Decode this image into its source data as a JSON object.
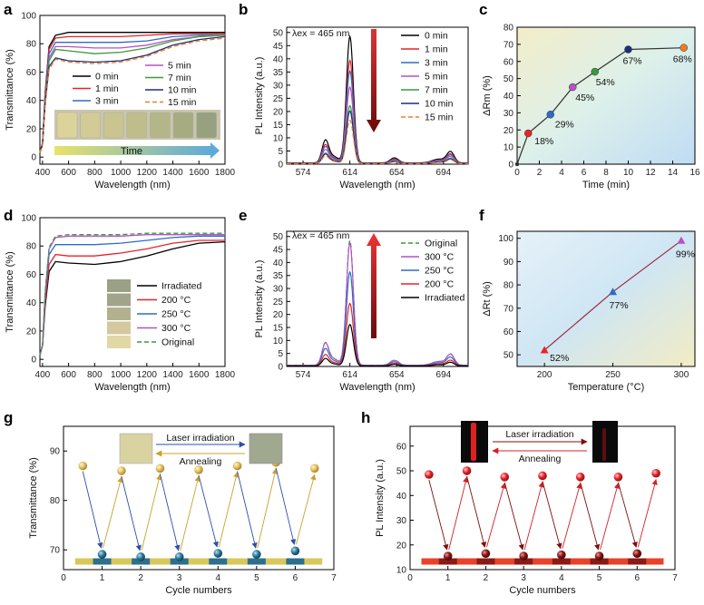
{
  "chart_data": [
    {
      "panel": "a",
      "type": "line",
      "xlabel": "Wavelength (nm)",
      "ylabel": "Transmittance (%)",
      "xlim": [
        380,
        1800
      ],
      "ylim": [
        -5,
        100
      ],
      "xticks": [
        "400",
        "600",
        "800",
        "1000",
        "1200",
        "1400",
        "1600",
        "1800"
      ],
      "yticks": [
        "0",
        "20",
        "40",
        "60",
        "80",
        "100"
      ],
      "inset_label": "Time",
      "series": [
        {
          "name": "0 min",
          "color": "#000000",
          "dash": "",
          "points": [
            [
              380,
              3
            ],
            [
              400,
              10
            ],
            [
              420,
              45
            ],
            [
              450,
              78
            ],
            [
              500,
              86
            ],
            [
              600,
              88
            ],
            [
              800,
              88
            ],
            [
              1000,
              88
            ],
            [
              1200,
              88
            ],
            [
              1400,
              88
            ],
            [
              1600,
              88
            ],
            [
              1800,
              88
            ]
          ]
        },
        {
          "name": "1 min",
          "color": "#e8232a",
          "dash": "",
          "points": [
            [
              380,
              3
            ],
            [
              400,
              10
            ],
            [
              420,
              44
            ],
            [
              450,
              76
            ],
            [
              500,
              84
            ],
            [
              600,
              85
            ],
            [
              800,
              85
            ],
            [
              1000,
              85
            ],
            [
              1200,
              86
            ],
            [
              1400,
              87
            ],
            [
              1600,
              87
            ],
            [
              1800,
              87
            ]
          ]
        },
        {
          "name": "3 min",
          "color": "#2e6bc6",
          "dash": "",
          "points": [
            [
              380,
              3
            ],
            [
              400,
              10
            ],
            [
              420,
              42
            ],
            [
              450,
              73
            ],
            [
              500,
              81
            ],
            [
              600,
              81
            ],
            [
              800,
              81
            ],
            [
              1000,
              81
            ],
            [
              1200,
              82
            ],
            [
              1400,
              85
            ],
            [
              1600,
              86
            ],
            [
              1800,
              86
            ]
          ]
        },
        {
          "name": "5 min",
          "color": "#b552c4",
          "dash": "",
          "points": [
            [
              380,
              3
            ],
            [
              400,
              9
            ],
            [
              420,
              40
            ],
            [
              450,
              70
            ],
            [
              500,
              78
            ],
            [
              600,
              78
            ],
            [
              800,
              77
            ],
            [
              1000,
              77
            ],
            [
              1200,
              79
            ],
            [
              1400,
              83
            ],
            [
              1600,
              85
            ],
            [
              1800,
              86
            ]
          ]
        },
        {
          "name": "7 min",
          "color": "#3a9a3e",
          "dash": "",
          "points": [
            [
              380,
              3
            ],
            [
              400,
              9
            ],
            [
              420,
              39
            ],
            [
              450,
              68
            ],
            [
              500,
              76
            ],
            [
              600,
              75
            ],
            [
              800,
              73
            ],
            [
              1000,
              74
            ],
            [
              1200,
              77
            ],
            [
              1400,
              82
            ],
            [
              1600,
              85
            ],
            [
              1800,
              86
            ]
          ]
        },
        {
          "name": "10 min",
          "color": "#1c2f7a",
          "dash": "",
          "points": [
            [
              380,
              3
            ],
            [
              400,
              9
            ],
            [
              420,
              37
            ],
            [
              450,
              64
            ],
            [
              500,
              70
            ],
            [
              600,
              68
            ],
            [
              800,
              67
            ],
            [
              1000,
              68
            ],
            [
              1200,
              72
            ],
            [
              1400,
              79
            ],
            [
              1600,
              83
            ],
            [
              1800,
              85
            ]
          ]
        },
        {
          "name": "15 min",
          "color": "#f07c22",
          "dash": "5,3",
          "points": [
            [
              380,
              3
            ],
            [
              400,
              9
            ],
            [
              420,
              36
            ],
            [
              450,
              62
            ],
            [
              500,
              69
            ],
            [
              600,
              67
            ],
            [
              800,
              66
            ],
            [
              1000,
              67
            ],
            [
              1200,
              71
            ],
            [
              1400,
              78
            ],
            [
              1600,
              82
            ],
            [
              1800,
              84
            ]
          ]
        }
      ]
    },
    {
      "panel": "b",
      "type": "line",
      "xlabel": "Wavelength (nm)",
      "ylabel": "PL Intensity (a.u.)",
      "xlim": [
        560,
        715
      ],
      "ylim": [
        0,
        52
      ],
      "xticks": [
        "574",
        "614",
        "654",
        "694"
      ],
      "yticks": [
        "0",
        "5",
        "10",
        "15",
        "20",
        "25",
        "30",
        "35",
        "40",
        "45",
        "50"
      ],
      "annotation": "λex = 465 nm",
      "peak_factors": [
        48,
        39,
        35,
        29,
        22,
        20,
        16.5
      ],
      "series": [
        {
          "name": "0 min",
          "color": "#000000",
          "dash": ""
        },
        {
          "name": "1 min",
          "color": "#e8232a",
          "dash": ""
        },
        {
          "name": "3 min",
          "color": "#2e6bc6",
          "dash": ""
        },
        {
          "name": "5 min",
          "color": "#b552c4",
          "dash": ""
        },
        {
          "name": "7 min",
          "color": "#3a9a3e",
          "dash": ""
        },
        {
          "name": "10 min",
          "color": "#1c2f7a",
          "dash": ""
        },
        {
          "name": "15 min",
          "color": "#f07c22",
          "dash": "5,3"
        }
      ]
    },
    {
      "panel": "c",
      "type": "scatter",
      "xlabel": "Time (min)",
      "ylabel": "ΔRm (%)",
      "xlim": [
        0,
        16
      ],
      "ylim": [
        0,
        80
      ],
      "xticks": [
        "0",
        "2",
        "4",
        "6",
        "8",
        "10",
        "12",
        "14",
        "16"
      ],
      "yticks": [
        "0",
        "10",
        "20",
        "30",
        "40",
        "50",
        "60",
        "70",
        "80"
      ],
      "points": [
        {
          "x": 0,
          "y": 0,
          "label": "",
          "color": "#333333"
        },
        {
          "x": 1,
          "y": 18,
          "label": "18%",
          "color": "#e8232a"
        },
        {
          "x": 3,
          "y": 29,
          "label": "29%",
          "color": "#2e6bc6"
        },
        {
          "x": 5,
          "y": 45,
          "label": "45%",
          "color": "#b552c4"
        },
        {
          "x": 7,
          "y": 54,
          "label": "54%",
          "color": "#3a9a3e"
        },
        {
          "x": 10,
          "y": 67,
          "label": "67%",
          "color": "#1c2f7a"
        },
        {
          "x": 15,
          "y": 68,
          "label": "68%",
          "color": "#f07c22"
        }
      ]
    },
    {
      "panel": "d",
      "type": "line",
      "xlabel": "Wavelength (nm)",
      "ylabel": "Transmittance (%)",
      "xlim": [
        380,
        1800
      ],
      "ylim": [
        -5,
        100
      ],
      "xticks": [
        "400",
        "600",
        "800",
        "1000",
        "1200",
        "1400",
        "1600",
        "1800"
      ],
      "yticks": [
        "0",
        "20",
        "40",
        "60",
        "80",
        "100"
      ],
      "series": [
        {
          "name": "Irradiated",
          "color": "#000000",
          "dash": "",
          "points": [
            [
              380,
              3
            ],
            [
              400,
              10
            ],
            [
              420,
              37
            ],
            [
              450,
              62
            ],
            [
              500,
              69
            ],
            [
              600,
              68
            ],
            [
              800,
              67
            ],
            [
              1000,
              69
            ],
            [
              1200,
              73
            ],
            [
              1400,
              78
            ],
            [
              1600,
              82
            ],
            [
              1800,
              83
            ]
          ]
        },
        {
          "name": "200 °C",
          "color": "#e8232a",
          "dash": "",
          "points": [
            [
              380,
              3
            ],
            [
              400,
              10
            ],
            [
              420,
              40
            ],
            [
              450,
              67
            ],
            [
              500,
              74
            ],
            [
              600,
              73
            ],
            [
              800,
              73
            ],
            [
              1000,
              75
            ],
            [
              1200,
              78
            ],
            [
              1400,
              82
            ],
            [
              1600,
              84
            ],
            [
              1800,
              84
            ]
          ]
        },
        {
          "name": "250 °C",
          "color": "#2e6bc6",
          "dash": "",
          "points": [
            [
              380,
              3
            ],
            [
              400,
              10
            ],
            [
              420,
              44
            ],
            [
              450,
              74
            ],
            [
              500,
              81
            ],
            [
              600,
              81
            ],
            [
              800,
              81
            ],
            [
              1000,
              82
            ],
            [
              1200,
              84
            ],
            [
              1400,
              86
            ],
            [
              1600,
              87
            ],
            [
              1800,
              87
            ]
          ]
        },
        {
          "name": "300 °C",
          "color": "#b552c4",
          "dash": "",
          "points": [
            [
              380,
              3
            ],
            [
              400,
              10
            ],
            [
              420,
              46
            ],
            [
              450,
              78
            ],
            [
              500,
              86
            ],
            [
              600,
              87
            ],
            [
              800,
              87
            ],
            [
              1000,
              87
            ],
            [
              1200,
              88
            ],
            [
              1400,
              88
            ],
            [
              1600,
              88
            ],
            [
              1800,
              88
            ]
          ]
        },
        {
          "name": "Original",
          "color": "#3a9a3e",
          "dash": "5,3",
          "points": [
            [
              380,
              3
            ],
            [
              400,
              10
            ],
            [
              420,
              47
            ],
            [
              450,
              79
            ],
            [
              500,
              87
            ],
            [
              600,
              88
            ],
            [
              800,
              88
            ],
            [
              1000,
              88
            ],
            [
              1200,
              89
            ],
            [
              1400,
              89
            ],
            [
              1600,
              89
            ],
            [
              1800,
              89
            ]
          ]
        }
      ]
    },
    {
      "panel": "e",
      "type": "line",
      "xlabel": "Wavelength (nm)",
      "ylabel": "PL Intensity (a.u.)",
      "xlim": [
        560,
        715
      ],
      "ylim": [
        0,
        52
      ],
      "xticks": [
        "574",
        "614",
        "654",
        "694"
      ],
      "yticks": [
        "0",
        "5",
        "10",
        "15",
        "20",
        "25",
        "30",
        "35",
        "40",
        "45",
        "50"
      ],
      "annotation": "λex = 465 nm",
      "peak_factors": [
        48,
        47,
        36,
        24,
        16
      ],
      "series": [
        {
          "name": "Original",
          "color": "#3a9a3e",
          "dash": "5,3"
        },
        {
          "name": "300 °C",
          "color": "#b552c4",
          "dash": ""
        },
        {
          "name": "250 °C",
          "color": "#2e6bc6",
          "dash": ""
        },
        {
          "name": "200 °C",
          "color": "#e8232a",
          "dash": ""
        },
        {
          "name": "Irradiated",
          "color": "#000000",
          "dash": ""
        }
      ]
    },
    {
      "panel": "f",
      "type": "scatter",
      "xlabel": "Temperature (°C)",
      "ylabel": "ΔRt (%)",
      "xlim": [
        180,
        310
      ],
      "ylim": [
        45,
        103
      ],
      "xticks": [
        "200",
        "250",
        "300"
      ],
      "yticks": [
        "50",
        "60",
        "70",
        "80",
        "90",
        "100"
      ],
      "points": [
        {
          "x": 200,
          "y": 52,
          "label": "52%",
          "color": "#e8232a"
        },
        {
          "x": 250,
          "y": 77,
          "label": "77%",
          "color": "#2e6bc6"
        },
        {
          "x": 300,
          "y": 99,
          "label": "99%",
          "color": "#b552c4"
        }
      ]
    },
    {
      "panel": "g",
      "type": "scatter",
      "xlabel": "Cycle numbers",
      "ylabel": "Transmittance (%)",
      "xlim": [
        0,
        7
      ],
      "ylim": [
        66,
        95
      ],
      "xticks": [
        "0",
        "1",
        "2",
        "3",
        "4",
        "5",
        "6",
        "7"
      ],
      "yticks": [
        "70",
        "80",
        "90"
      ],
      "arrow_top": "Laser irradiation",
      "arrow_bottom": "Annealing",
      "high": [
        [
          0.5,
          87
        ],
        [
          1.5,
          86
        ],
        [
          2.5,
          86.5
        ],
        [
          3.5,
          86.2
        ],
        [
          4.5,
          87
        ],
        [
          5.5,
          87.7
        ],
        [
          6.5,
          86.5
        ]
      ],
      "low": [
        [
          1,
          69.1
        ],
        [
          2,
          68.6
        ],
        [
          3,
          68.6
        ],
        [
          4,
          69.3
        ],
        [
          5,
          69.1
        ],
        [
          6,
          69.8
        ]
      ],
      "high_color": "#d8b44a",
      "low_color": "#2d7a9a"
    },
    {
      "panel": "h",
      "type": "scatter",
      "xlabel": "Cycle numbers",
      "ylabel": "PL Intensity (a.u.)",
      "xlim": [
        0,
        7
      ],
      "ylim": [
        10,
        68
      ],
      "xticks": [
        "0",
        "1",
        "2",
        "3",
        "4",
        "5",
        "6",
        "7"
      ],
      "yticks": [
        "10",
        "20",
        "30",
        "40",
        "50",
        "60"
      ],
      "arrow_top": "Laser irradiation",
      "arrow_bottom": "Annealing",
      "high": [
        [
          0.5,
          48.5
        ],
        [
          1.5,
          50
        ],
        [
          2.5,
          47.5
        ],
        [
          3.5,
          48
        ],
        [
          4.5,
          47.5
        ],
        [
          5.5,
          47.5
        ],
        [
          6.5,
          49
        ]
      ],
      "low": [
        [
          1,
          15.5
        ],
        [
          2,
          16.5
        ],
        [
          3,
          15.5
        ],
        [
          4,
          16
        ],
        [
          5,
          15.5
        ],
        [
          6,
          16.5
        ]
      ],
      "high_color": "#e8232a",
      "low_color": "#8a1414"
    }
  ]
}
